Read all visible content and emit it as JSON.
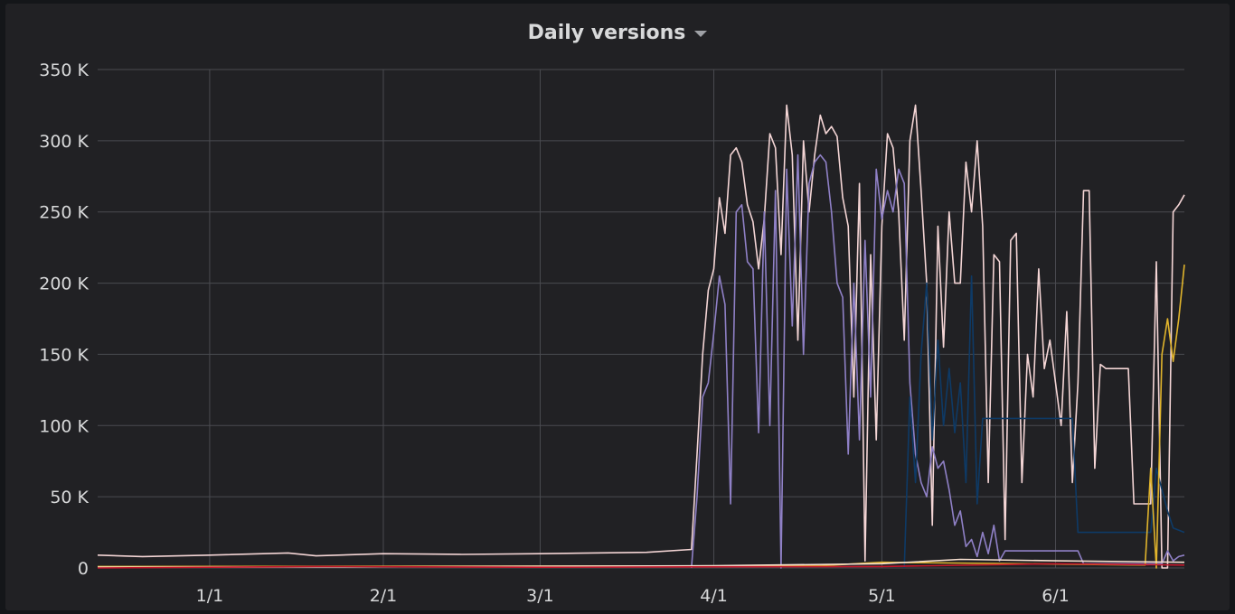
{
  "panel": {
    "title": "Daily versions",
    "caret_icon": "chevron-down-icon"
  },
  "chart_data": {
    "type": "line",
    "title": "Daily versions",
    "xlabel": "",
    "ylabel": "",
    "x_range": [
      "2017-12-12",
      "2018-06-24"
    ],
    "ylim": [
      0,
      350000
    ],
    "grid": true,
    "legend": "none",
    "y_ticks": [
      {
        "value": 0,
        "label": "0"
      },
      {
        "value": 50000,
        "label": "50 K"
      },
      {
        "value": 100000,
        "label": "100 K"
      },
      {
        "value": 150000,
        "label": "150 K"
      },
      {
        "value": 200000,
        "label": "200 K"
      },
      {
        "value": 250000,
        "label": "250 K"
      },
      {
        "value": 300000,
        "label": "300 K"
      },
      {
        "value": 350000,
        "label": "350 K"
      }
    ],
    "x_ticks": [
      {
        "date": "2018-01-01",
        "label": "1/1"
      },
      {
        "date": "2018-02-01",
        "label": "2/1"
      },
      {
        "date": "2018-03-01",
        "label": "3/1"
      },
      {
        "date": "2018-04-01",
        "label": "4/1"
      },
      {
        "date": "2018-05-01",
        "label": "5/1"
      },
      {
        "date": "2018-06-01",
        "label": "6/1"
      }
    ],
    "series": [
      {
        "color": "#f4d5d5",
        "points": [
          [
            "2017-12-12",
            9000
          ],
          [
            "2017-12-20",
            8000
          ],
          [
            "2018-01-01",
            9000
          ],
          [
            "2018-01-15",
            10500
          ],
          [
            "2018-01-20",
            8500
          ],
          [
            "2018-02-01",
            10000
          ],
          [
            "2018-02-15",
            9500
          ],
          [
            "2018-03-01",
            10000
          ],
          [
            "2018-03-20",
            11000
          ],
          [
            "2018-03-28",
            13000
          ],
          [
            "2018-03-29",
            80000
          ],
          [
            "2018-03-30",
            150000
          ],
          [
            "2018-03-31",
            195000
          ],
          [
            "2018-04-01",
            210000
          ],
          [
            "2018-04-02",
            260000
          ],
          [
            "2018-04-03",
            235000
          ],
          [
            "2018-04-04",
            290000
          ],
          [
            "2018-04-05",
            295000
          ],
          [
            "2018-04-06",
            285000
          ],
          [
            "2018-04-07",
            255000
          ],
          [
            "2018-04-08",
            243000
          ],
          [
            "2018-04-09",
            210000
          ],
          [
            "2018-04-10",
            245000
          ],
          [
            "2018-04-11",
            305000
          ],
          [
            "2018-04-12",
            295000
          ],
          [
            "2018-04-13",
            220000
          ],
          [
            "2018-04-14",
            325000
          ],
          [
            "2018-04-15",
            290000
          ],
          [
            "2018-04-16",
            160000
          ],
          [
            "2018-04-17",
            300000
          ],
          [
            "2018-04-18",
            250000
          ],
          [
            "2018-04-19",
            290000
          ],
          [
            "2018-04-20",
            318000
          ],
          [
            "2018-04-21",
            305000
          ],
          [
            "2018-04-22",
            310000
          ],
          [
            "2018-04-23",
            303000
          ],
          [
            "2018-04-24",
            260000
          ],
          [
            "2018-04-25",
            240000
          ],
          [
            "2018-04-26",
            120000
          ],
          [
            "2018-04-27",
            270000
          ],
          [
            "2018-04-28",
            5000
          ],
          [
            "2018-04-29",
            220000
          ],
          [
            "2018-04-30",
            90000
          ],
          [
            "2018-05-01",
            240000
          ],
          [
            "2018-05-02",
            305000
          ],
          [
            "2018-05-03",
            295000
          ],
          [
            "2018-05-04",
            250000
          ],
          [
            "2018-05-05",
            160000
          ],
          [
            "2018-05-06",
            300000
          ],
          [
            "2018-05-07",
            325000
          ],
          [
            "2018-05-08",
            265000
          ],
          [
            "2018-05-09",
            200000
          ],
          [
            "2018-05-10",
            30000
          ],
          [
            "2018-05-11",
            240000
          ],
          [
            "2018-05-12",
            155000
          ],
          [
            "2018-05-13",
            250000
          ],
          [
            "2018-05-14",
            200000
          ],
          [
            "2018-05-15",
            200000
          ],
          [
            "2018-05-16",
            285000
          ],
          [
            "2018-05-17",
            250000
          ],
          [
            "2018-05-18",
            300000
          ],
          [
            "2018-05-19",
            240000
          ],
          [
            "2018-05-20",
            60000
          ],
          [
            "2018-05-21",
            220000
          ],
          [
            "2018-05-22",
            215000
          ],
          [
            "2018-05-23",
            20000
          ],
          [
            "2018-05-24",
            230000
          ],
          [
            "2018-05-25",
            235000
          ],
          [
            "2018-05-26",
            60000
          ],
          [
            "2018-05-27",
            150000
          ],
          [
            "2018-05-28",
            120000
          ],
          [
            "2018-05-29",
            210000
          ],
          [
            "2018-05-30",
            140000
          ],
          [
            "2018-05-31",
            160000
          ],
          [
            "2018-06-01",
            130000
          ],
          [
            "2018-06-02",
            100000
          ],
          [
            "2018-06-03",
            180000
          ],
          [
            "2018-06-04",
            60000
          ],
          [
            "2018-06-05",
            130000
          ],
          [
            "2018-06-06",
            265000
          ],
          [
            "2018-06-07",
            265000
          ],
          [
            "2018-06-08",
            70000
          ],
          [
            "2018-06-09",
            143000
          ],
          [
            "2018-06-10",
            140000
          ],
          [
            "2018-06-12",
            140000
          ],
          [
            "2018-06-14",
            140000
          ],
          [
            "2018-06-15",
            45000
          ],
          [
            "2018-06-18",
            45000
          ],
          [
            "2018-06-19",
            215000
          ],
          [
            "2018-06-20",
            0
          ],
          [
            "2018-06-21",
            0
          ],
          [
            "2018-06-22",
            250000
          ],
          [
            "2018-06-23",
            255000
          ],
          [
            "2018-06-24",
            262000
          ]
        ]
      },
      {
        "color": "#8f80c6",
        "points": [
          [
            "2018-03-28",
            0
          ],
          [
            "2018-03-29",
            50000
          ],
          [
            "2018-03-30",
            120000
          ],
          [
            "2018-03-31",
            130000
          ],
          [
            "2018-04-01",
            165000
          ],
          [
            "2018-04-02",
            205000
          ],
          [
            "2018-04-03",
            185000
          ],
          [
            "2018-04-04",
            45000
          ],
          [
            "2018-04-05",
            250000
          ],
          [
            "2018-04-06",
            255000
          ],
          [
            "2018-04-07",
            215000
          ],
          [
            "2018-04-08",
            210000
          ],
          [
            "2018-04-09",
            95000
          ],
          [
            "2018-04-10",
            250000
          ],
          [
            "2018-04-11",
            100000
          ],
          [
            "2018-04-12",
            265000
          ],
          [
            "2018-04-13",
            0
          ],
          [
            "2018-04-14",
            280000
          ],
          [
            "2018-04-15",
            170000
          ],
          [
            "2018-04-16",
            290000
          ],
          [
            "2018-04-17",
            150000
          ],
          [
            "2018-04-18",
            270000
          ],
          [
            "2018-04-19",
            285000
          ],
          [
            "2018-04-20",
            290000
          ],
          [
            "2018-04-21",
            285000
          ],
          [
            "2018-04-22",
            250000
          ],
          [
            "2018-04-23",
            200000
          ],
          [
            "2018-04-24",
            190000
          ],
          [
            "2018-04-25",
            80000
          ],
          [
            "2018-04-26",
            200000
          ],
          [
            "2018-04-27",
            90000
          ],
          [
            "2018-04-28",
            230000
          ],
          [
            "2018-04-29",
            120000
          ],
          [
            "2018-04-30",
            280000
          ],
          [
            "2018-05-01",
            245000
          ],
          [
            "2018-05-02",
            265000
          ],
          [
            "2018-05-03",
            250000
          ],
          [
            "2018-05-04",
            280000
          ],
          [
            "2018-05-05",
            270000
          ],
          [
            "2018-05-06",
            130000
          ],
          [
            "2018-05-07",
            80000
          ],
          [
            "2018-05-08",
            60000
          ],
          [
            "2018-05-09",
            50000
          ],
          [
            "2018-05-10",
            85000
          ],
          [
            "2018-05-11",
            70000
          ],
          [
            "2018-05-12",
            75000
          ],
          [
            "2018-05-13",
            55000
          ],
          [
            "2018-05-14",
            30000
          ],
          [
            "2018-05-15",
            40000
          ],
          [
            "2018-05-16",
            15000
          ],
          [
            "2018-05-17",
            20000
          ],
          [
            "2018-05-18",
            8000
          ],
          [
            "2018-05-19",
            25000
          ],
          [
            "2018-05-20",
            10000
          ],
          [
            "2018-05-21",
            30000
          ],
          [
            "2018-05-22",
            5000
          ],
          [
            "2018-05-23",
            12000
          ],
          [
            "2018-05-24",
            12000
          ],
          [
            "2018-06-01",
            12000
          ],
          [
            "2018-06-05",
            12000
          ],
          [
            "2018-06-06",
            3000
          ],
          [
            "2018-06-20",
            3000
          ],
          [
            "2018-06-21",
            12000
          ],
          [
            "2018-06-22",
            5000
          ],
          [
            "2018-06-23",
            8000
          ],
          [
            "2018-06-24",
            9000
          ]
        ]
      },
      {
        "color": "#0e3a66",
        "points": [
          [
            "2018-05-05",
            0
          ],
          [
            "2018-05-06",
            120000
          ],
          [
            "2018-05-07",
            60000
          ],
          [
            "2018-05-08",
            150000
          ],
          [
            "2018-05-09",
            200000
          ],
          [
            "2018-05-10",
            90000
          ],
          [
            "2018-05-11",
            160000
          ],
          [
            "2018-05-12",
            100000
          ],
          [
            "2018-05-13",
            140000
          ],
          [
            "2018-05-14",
            95000
          ],
          [
            "2018-05-15",
            130000
          ],
          [
            "2018-05-16",
            60000
          ],
          [
            "2018-05-17",
            205000
          ],
          [
            "2018-05-18",
            45000
          ],
          [
            "2018-05-19",
            105000
          ],
          [
            "2018-06-04",
            105000
          ],
          [
            "2018-06-05",
            25000
          ],
          [
            "2018-06-18",
            25000
          ],
          [
            "2018-06-19",
            70000
          ],
          [
            "2018-06-21",
            40000
          ],
          [
            "2018-06-22",
            28000
          ],
          [
            "2018-06-24",
            25000
          ]
        ]
      },
      {
        "color": "#e0b42c",
        "points": [
          [
            "2017-12-12",
            1000
          ],
          [
            "2018-04-20",
            1500
          ],
          [
            "2018-05-01",
            4000
          ],
          [
            "2018-06-17",
            2000
          ],
          [
            "2018-06-18",
            70000
          ],
          [
            "2018-06-19",
            0
          ],
          [
            "2018-06-20",
            150000
          ],
          [
            "2018-06-21",
            175000
          ],
          [
            "2018-06-22",
            145000
          ],
          [
            "2018-06-23",
            175000
          ],
          [
            "2018-06-24",
            213000
          ]
        ]
      },
      {
        "color": "#f9e2d2",
        "points": [
          [
            "2017-12-12",
            500
          ],
          [
            "2018-02-01",
            800
          ],
          [
            "2018-04-01",
            1500
          ],
          [
            "2018-05-01",
            3000
          ],
          [
            "2018-05-15",
            6000
          ],
          [
            "2018-06-01",
            5000
          ],
          [
            "2018-06-24",
            4000
          ]
        ]
      },
      {
        "color": "#c4162a",
        "points": [
          [
            "2017-12-12",
            0
          ],
          [
            "2018-01-20",
            1000
          ],
          [
            "2018-03-01",
            500
          ],
          [
            "2018-05-01",
            1000
          ],
          [
            "2018-06-01",
            3000
          ],
          [
            "2018-06-24",
            2000
          ]
        ]
      }
    ]
  }
}
